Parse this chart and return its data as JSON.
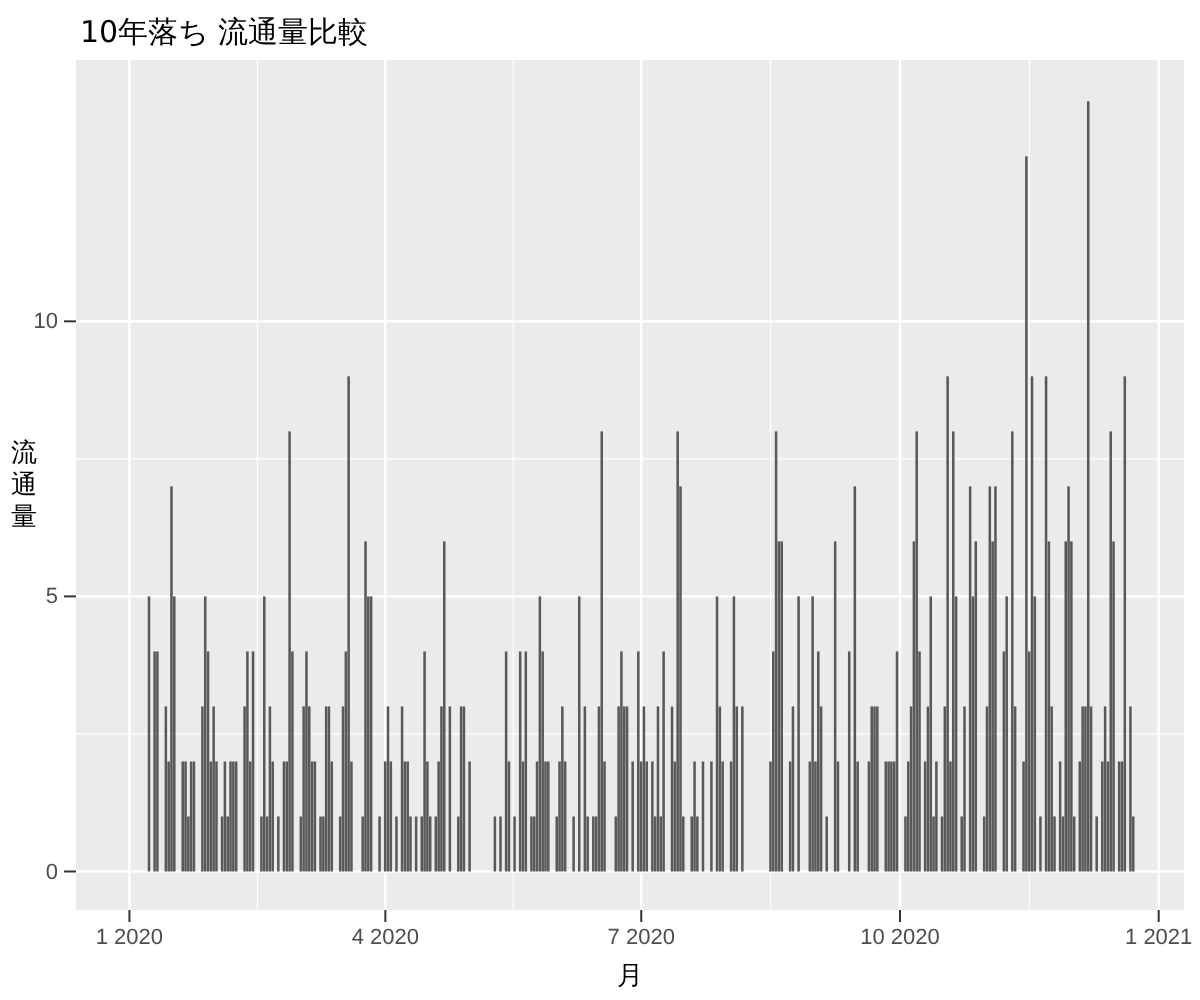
{
  "chart_data": {
    "type": "bar",
    "title": "10年落ち 流通量比較",
    "xlabel": "月",
    "ylabel": "流通量",
    "color": "#595959",
    "grid": true,
    "xlim": [
      "2019-12-13",
      "2021-01-10"
    ],
    "ylim": [
      -0.7,
      14.75
    ],
    "yticks": [
      0,
      5,
      10
    ],
    "xticks": [
      {
        "value": "2020-01-01",
        "label": "1 2020"
      },
      {
        "value": "2020-04-01",
        "label": "4 2020"
      },
      {
        "value": "2020-07-01",
        "label": "7 2020"
      },
      {
        "value": "2020-10-01",
        "label": "10 2020"
      },
      {
        "value": "2021-01-01",
        "label": "1 2021"
      }
    ],
    "x": [
      "2020-01-08",
      "2020-01-10",
      "2020-01-11",
      "2020-01-14",
      "2020-01-15",
      "2020-01-16",
      "2020-01-17",
      "2020-01-20",
      "2020-01-21",
      "2020-01-22",
      "2020-01-23",
      "2020-01-24",
      "2020-01-27",
      "2020-01-28",
      "2020-01-29",
      "2020-01-30",
      "2020-01-31",
      "2020-02-01",
      "2020-02-03",
      "2020-02-04",
      "2020-02-05",
      "2020-02-06",
      "2020-02-07",
      "2020-02-08",
      "2020-02-11",
      "2020-02-12",
      "2020-02-13",
      "2020-02-14",
      "2020-02-17",
      "2020-02-18",
      "2020-02-19",
      "2020-02-20",
      "2020-02-21",
      "2020-02-23",
      "2020-02-25",
      "2020-02-26",
      "2020-02-27",
      "2020-02-28",
      "2020-03-02",
      "2020-03-03",
      "2020-03-04",
      "2020-03-05",
      "2020-03-06",
      "2020-03-07",
      "2020-03-09",
      "2020-03-10",
      "2020-03-11",
      "2020-03-12",
      "2020-03-13",
      "2020-03-16",
      "2020-03-17",
      "2020-03-18",
      "2020-03-19",
      "2020-03-20",
      "2020-03-24",
      "2020-03-25",
      "2020-03-26",
      "2020-03-27",
      "2020-03-30",
      "2020-04-01",
      "2020-04-02",
      "2020-04-03",
      "2020-04-05",
      "2020-04-07",
      "2020-04-08",
      "2020-04-09",
      "2020-04-10",
      "2020-04-12",
      "2020-04-14",
      "2020-04-15",
      "2020-04-16",
      "2020-04-17",
      "2020-04-19",
      "2020-04-20",
      "2020-04-21",
      "2020-04-22",
      "2020-04-24",
      "2020-04-27",
      "2020-04-28",
      "2020-04-29",
      "2020-05-01",
      "2020-05-10",
      "2020-05-12",
      "2020-05-14",
      "2020-05-15",
      "2020-05-17",
      "2020-05-19",
      "2020-05-20",
      "2020-05-21",
      "2020-05-23",
      "2020-05-24",
      "2020-05-25",
      "2020-05-26",
      "2020-05-27",
      "2020-05-28",
      "2020-05-29",
      "2020-06-01",
      "2020-06-02",
      "2020-06-03",
      "2020-06-04",
      "2020-06-07",
      "2020-06-09",
      "2020-06-11",
      "2020-06-12",
      "2020-06-14",
      "2020-06-15",
      "2020-06-16",
      "2020-06-17",
      "2020-06-18",
      "2020-06-22",
      "2020-06-23",
      "2020-06-24",
      "2020-06-25",
      "2020-06-26",
      "2020-06-28",
      "2020-06-30",
      "2020-07-01",
      "2020-07-02",
      "2020-07-03",
      "2020-07-05",
      "2020-07-06",
      "2020-07-07",
      "2020-07-08",
      "2020-07-09",
      "2020-07-12",
      "2020-07-13",
      "2020-07-14",
      "2020-07-15",
      "2020-07-16",
      "2020-07-19",
      "2020-07-20",
      "2020-07-21",
      "2020-07-23",
      "2020-07-26",
      "2020-07-28",
      "2020-07-29",
      "2020-07-30",
      "2020-08-02",
      "2020-08-03",
      "2020-08-04",
      "2020-08-06",
      "2020-08-16",
      "2020-08-17",
      "2020-08-18",
      "2020-08-19",
      "2020-08-20",
      "2020-08-23",
      "2020-08-24",
      "2020-08-26",
      "2020-08-30",
      "2020-08-31",
      "2020-09-01",
      "2020-09-02",
      "2020-09-03",
      "2020-09-05",
      "2020-09-08",
      "2020-09-09",
      "2020-09-13",
      "2020-09-15",
      "2020-09-16",
      "2020-09-20",
      "2020-09-21",
      "2020-09-22",
      "2020-09-23",
      "2020-09-26",
      "2020-09-27",
      "2020-09-28",
      "2020-09-29",
      "2020-09-30",
      "2020-10-03",
      "2020-10-04",
      "2020-10-05",
      "2020-10-06",
      "2020-10-07",
      "2020-10-08",
      "2020-10-10",
      "2020-10-11",
      "2020-10-12",
      "2020-10-13",
      "2020-10-14",
      "2020-10-16",
      "2020-10-17",
      "2020-10-18",
      "2020-10-19",
      "2020-10-20",
      "2020-10-21",
      "2020-10-23",
      "2020-10-24",
      "2020-10-26",
      "2020-10-27",
      "2020-10-28",
      "2020-10-31",
      "2020-11-01",
      "2020-11-02",
      "2020-11-03",
      "2020-11-04",
      "2020-11-07",
      "2020-11-08",
      "2020-11-10",
      "2020-11-11",
      "2020-11-14",
      "2020-11-15",
      "2020-11-16",
      "2020-11-17",
      "2020-11-18",
      "2020-11-20",
      "2020-11-22",
      "2020-11-23",
      "2020-11-24",
      "2020-11-25",
      "2020-11-27",
      "2020-11-28",
      "2020-11-29",
      "2020-11-30",
      "2020-12-01",
      "2020-12-02",
      "2020-12-04",
      "2020-12-05",
      "2020-12-06",
      "2020-12-07",
      "2020-12-08",
      "2020-12-10",
      "2020-12-12",
      "2020-12-13",
      "2020-12-14",
      "2020-12-15",
      "2020-12-16",
      "2020-12-18",
      "2020-12-19",
      "2020-12-20",
      "2020-12-22",
      "2020-12-23"
    ],
    "values": [
      5,
      4,
      4,
      3,
      2,
      7,
      5,
      2,
      2,
      1,
      2,
      2,
      3,
      5,
      4,
      2,
      3,
      2,
      1,
      2,
      1,
      2,
      2,
      2,
      3,
      4,
      2,
      4,
      1,
      5,
      1,
      3,
      2,
      1,
      2,
      2,
      8,
      4,
      1,
      3,
      4,
      3,
      2,
      2,
      1,
      1,
      3,
      3,
      2,
      1,
      3,
      4,
      9,
      2,
      1,
      6,
      5,
      5,
      1,
      2,
      3,
      2,
      1,
      3,
      2,
      2,
      1,
      1,
      1,
      4,
      2,
      1,
      1,
      2,
      3,
      6,
      3,
      1,
      3,
      3,
      2,
      1,
      1,
      4,
      2,
      1,
      4,
      2,
      4,
      1,
      1,
      2,
      5,
      4,
      2,
      2,
      1,
      2,
      3,
      2,
      1,
      5,
      3,
      1,
      1,
      1,
      3,
      8,
      2,
      1,
      3,
      4,
      3,
      3,
      2,
      4,
      2,
      3,
      2,
      2,
      1,
      3,
      1,
      4,
      3,
      2,
      8,
      7,
      1,
      1,
      2,
      1,
      2,
      2,
      5,
      3,
      2,
      2,
      5,
      3,
      3,
      2,
      4,
      8,
      6,
      6,
      2,
      3,
      5,
      2,
      5,
      2,
      4,
      3,
      1,
      6,
      2,
      4,
      7,
      2,
      2,
      3,
      3,
      3,
      2,
      2,
      2,
      2,
      4,
      1,
      2,
      3,
      6,
      8,
      4,
      2,
      3,
      5,
      1,
      2,
      1,
      3,
      9,
      2,
      8,
      5,
      1,
      3,
      7,
      5,
      6,
      1,
      3,
      7,
      6,
      7,
      4,
      5,
      8,
      3,
      2,
      13,
      4,
      9,
      5,
      1,
      9,
      6,
      3,
      1,
      2,
      1,
      6,
      7,
      6,
      1,
      2,
      3,
      3,
      14,
      3,
      1,
      2,
      3,
      2,
      8,
      6,
      2,
      2,
      9,
      3,
      1
    ]
  }
}
